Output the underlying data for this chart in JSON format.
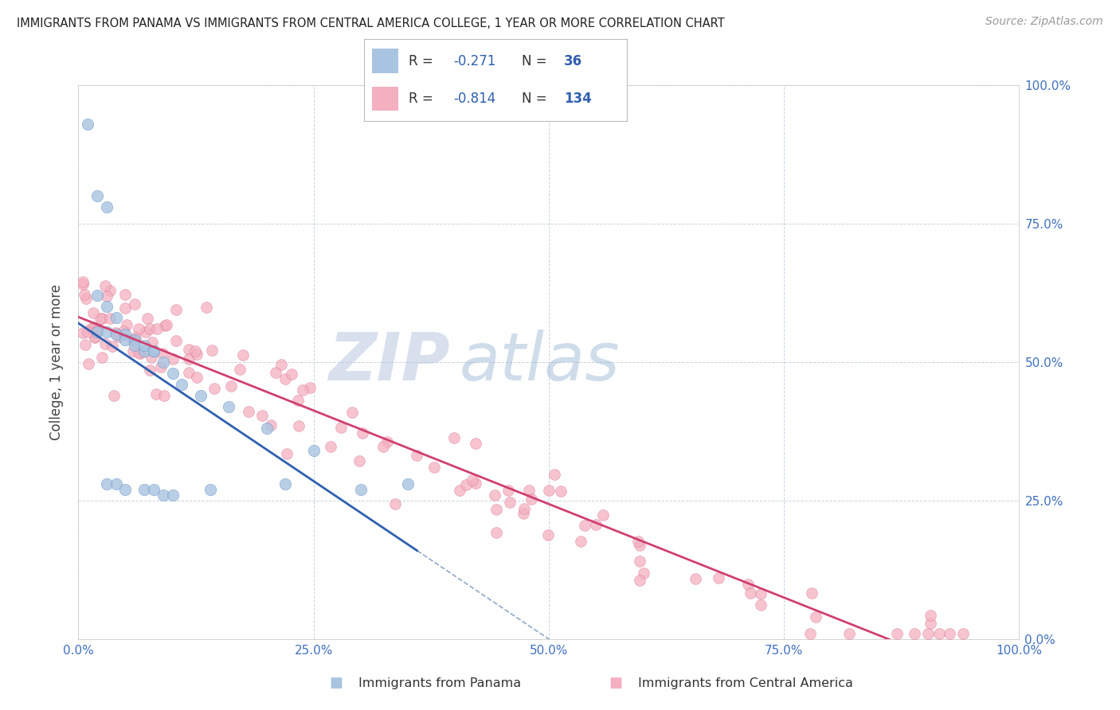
{
  "title": "IMMIGRANTS FROM PANAMA VS IMMIGRANTS FROM CENTRAL AMERICA COLLEGE, 1 YEAR OR MORE CORRELATION CHART",
  "source": "Source: ZipAtlas.com",
  "ylabel": "College, 1 year or more",
  "watermark_ZIP": "ZIP",
  "watermark_atlas": "atlas",
  "legend_R_blue": "-0.271",
  "legend_N_blue": "36",
  "legend_R_pink": "-0.814",
  "legend_N_pink": "134",
  "blue_scatter_color": "#a8c4e0",
  "blue_edge_color": "#5080c0",
  "pink_scatter_color": "#f4afc0",
  "pink_edge_color": "#d06080",
  "blue_line_color": "#3060b0",
  "pink_line_color": "#d04070",
  "dashed_line_color": "#90a8c8",
  "grid_color": "#c8d4e0",
  "background_color": "#ffffff",
  "tick_color": "#4070c0",
  "legend_label_blue": "Immigrants from Panama",
  "legend_label_pink": "Immigrants from Central America"
}
